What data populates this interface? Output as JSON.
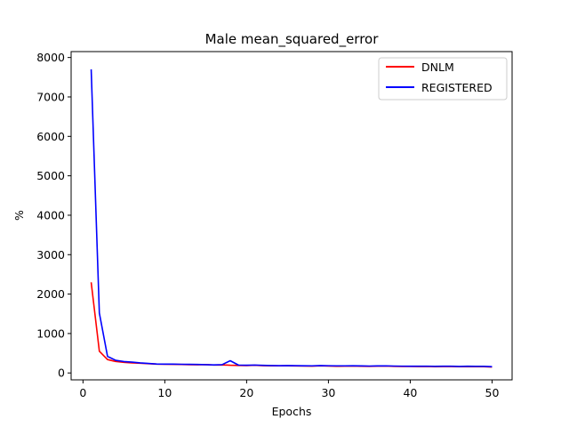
{
  "chart_data": {
    "type": "line",
    "title": "Male mean_squared_error",
    "xlabel": "Epochs",
    "ylabel": "%",
    "xlim": [
      -1.45,
      52.45
    ],
    "ylim": [
      -175,
      8150
    ],
    "xticks": [
      0,
      10,
      20,
      30,
      40,
      50
    ],
    "yticks": [
      0,
      1000,
      2000,
      3000,
      4000,
      5000,
      6000,
      7000,
      8000
    ],
    "grid": false,
    "legend_position": "upper right",
    "x": [
      1,
      2,
      3,
      4,
      5,
      6,
      7,
      8,
      9,
      10,
      11,
      12,
      13,
      14,
      15,
      16,
      17,
      18,
      19,
      20,
      21,
      22,
      23,
      24,
      25,
      26,
      27,
      28,
      29,
      30,
      31,
      32,
      33,
      34,
      35,
      36,
      37,
      38,
      39,
      40,
      41,
      42,
      43,
      44,
      45,
      46,
      47,
      48,
      49,
      50
    ],
    "series": [
      {
        "name": "DNLM",
        "color": "#ff0000",
        "values": [
          2300,
          550,
          340,
          290,
          270,
          255,
          245,
          235,
          225,
          220,
          218,
          215,
          210,
          208,
          212,
          200,
          205,
          195,
          190,
          188,
          195,
          185,
          182,
          180,
          182,
          178,
          175,
          172,
          180,
          175,
          170,
          172,
          175,
          170,
          168,
          172,
          175,
          168,
          165,
          165,
          162,
          165,
          160,
          162,
          163,
          158,
          162,
          160,
          158,
          150
        ]
      },
      {
        "name": "REGISTERED",
        "color": "#0000ff",
        "values": [
          7700,
          1520,
          420,
          320,
          290,
          275,
          255,
          240,
          228,
          225,
          225,
          220,
          218,
          215,
          210,
          205,
          210,
          310,
          200,
          195,
          200,
          192,
          188,
          185,
          188,
          185,
          182,
          180,
          188,
          183,
          180,
          180,
          182,
          178,
          175,
          178,
          180,
          175,
          172,
          170,
          170,
          172,
          168,
          170,
          170,
          166,
          170,
          168,
          168,
          160
        ]
      }
    ]
  }
}
